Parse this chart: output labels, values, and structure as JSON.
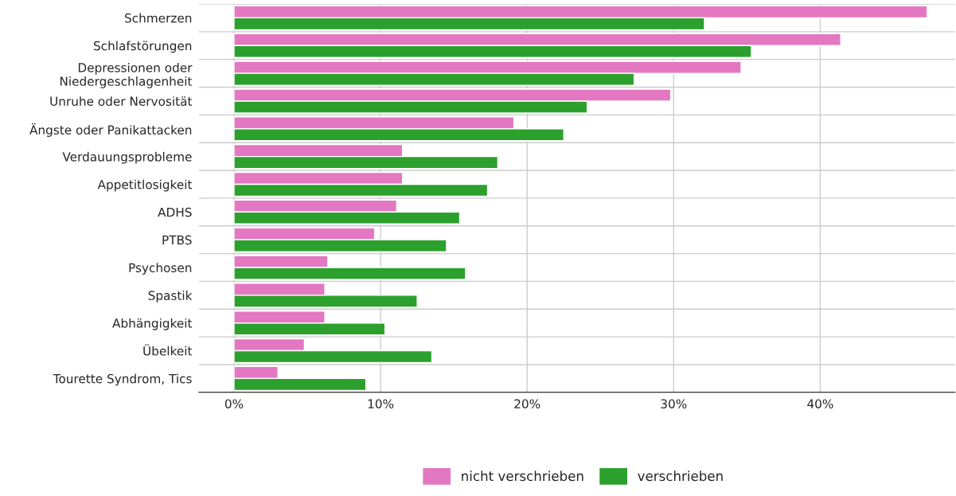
{
  "chart_data": {
    "type": "bar",
    "orientation": "horizontal",
    "categories": [
      "Schmerzen",
      "Schlafstörungen",
      "Depressionen oder\nNiedergeschlagenheit",
      "Unruhe oder Nervosität",
      "Ängste oder Panikattacken",
      "Verdauungsprobleme",
      "Appetitlosigkeit",
      "ADHS",
      "PTBS",
      "Psychosen",
      "Spastik",
      "Abhängigkeit",
      "Übelkeit",
      "Tourette Syndrom, Tics"
    ],
    "series": [
      {
        "name": "nicht verschrieben",
        "color": "#e377c2",
        "values": [
          47.3,
          41.4,
          34.6,
          29.8,
          19.1,
          11.5,
          11.5,
          11.1,
          9.6,
          6.4,
          6.2,
          6.2,
          4.8,
          3.0
        ]
      },
      {
        "name": "verschrieben",
        "color": "#2ca02c",
        "values": [
          32.1,
          35.3,
          27.3,
          24.1,
          22.5,
          18.0,
          17.3,
          15.4,
          14.5,
          15.8,
          12.5,
          10.3,
          13.5,
          9.0
        ]
      }
    ],
    "xlim": [
      -2.4,
      49.2
    ],
    "xticks": [
      {
        "value": 0,
        "label": "0%"
      },
      {
        "value": 10,
        "label": "10%"
      },
      {
        "value": 20,
        "label": "20%"
      },
      {
        "value": 30,
        "label": "30%"
      },
      {
        "value": 40,
        "label": "40%"
      }
    ],
    "grid": true,
    "legend": "bottom"
  }
}
